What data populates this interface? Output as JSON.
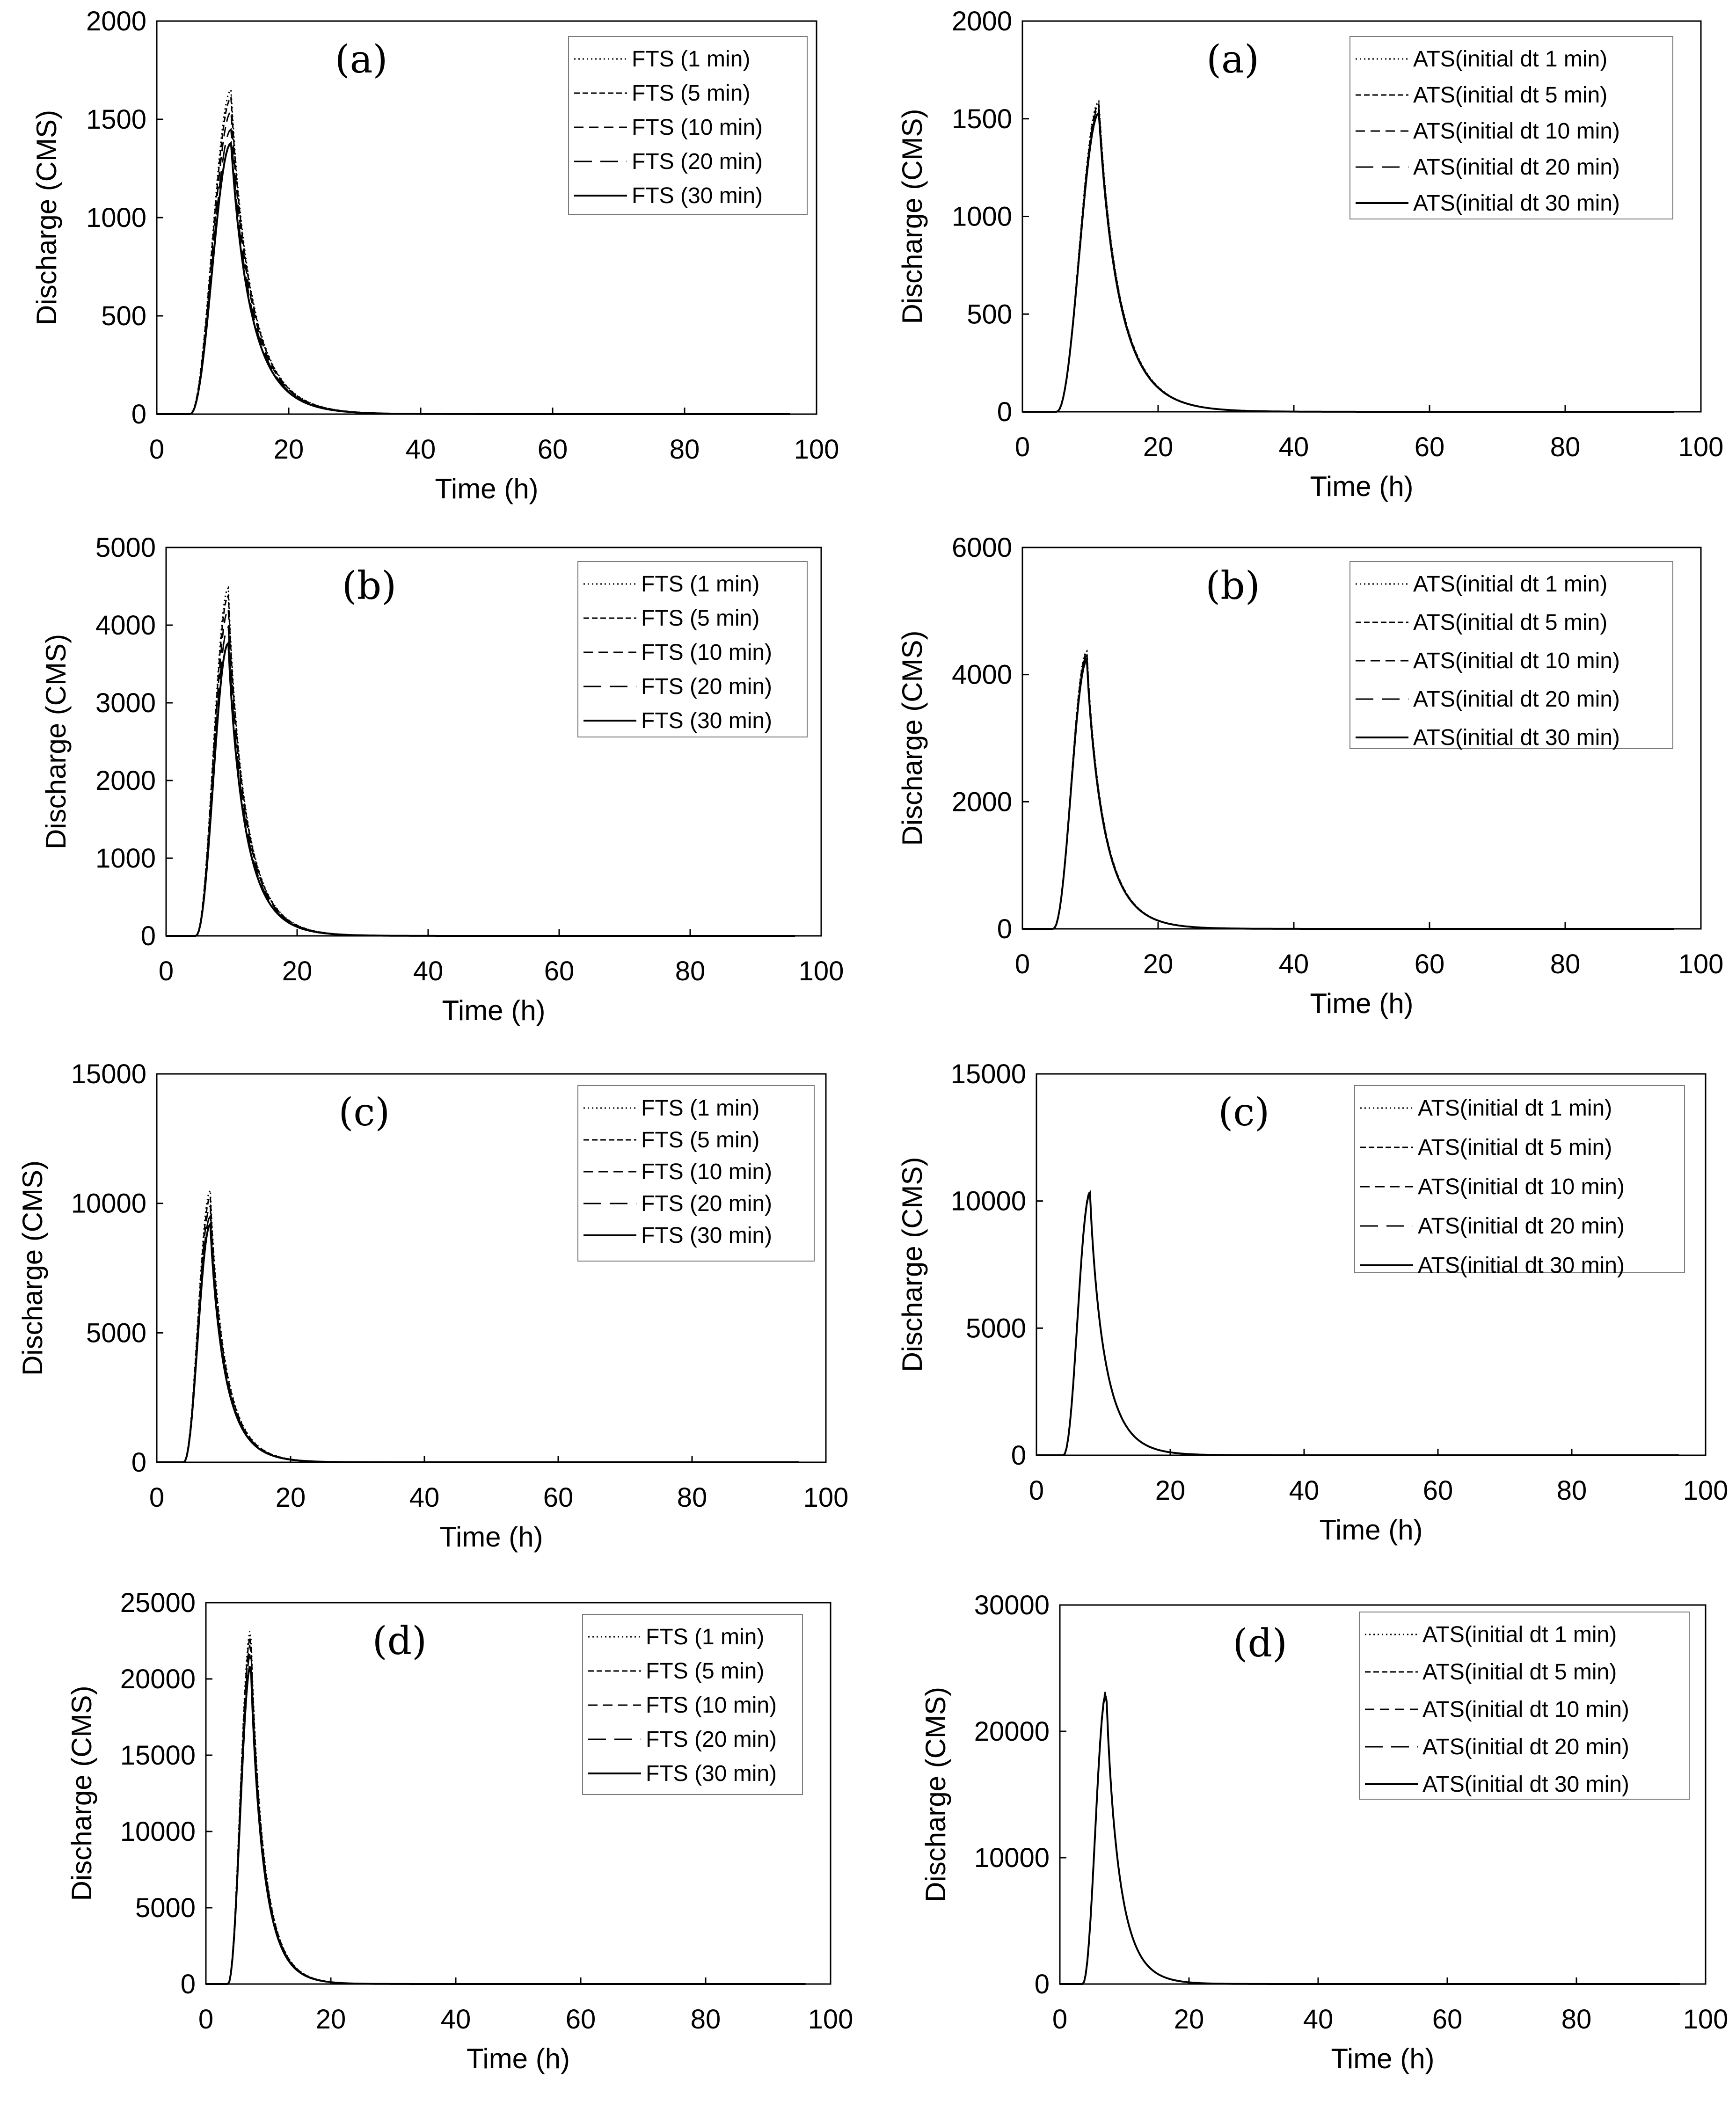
{
  "figure": {
    "description_labels": {
      "x_axis_label": "Time (h)",
      "y_axis_label": "Discharge (CMS)"
    }
  },
  "chart_data": [
    {
      "id": "fts-a",
      "type": "line",
      "panel_label": "(a)",
      "xlabel": "Time (h)",
      "ylabel": "Discharge (CMS)",
      "xlim": [
        0,
        100
      ],
      "ylim": [
        0,
        2000
      ],
      "xticks": [
        0,
        20,
        40,
        60,
        80,
        100
      ],
      "yticks": [
        0,
        500,
        1000,
        1500,
        2000
      ],
      "legend_position": "top-right",
      "grid": false,
      "hydrograph": {
        "t_start": 5,
        "t_peak": 11.3,
        "t_end": 96,
        "recession_k": 0.36,
        "recession_p": 0.9
      },
      "series": [
        {
          "name": "FTS (1 min)",
          "style": "dotted",
          "peak": 1650
        },
        {
          "name": "FTS (5 min)",
          "style": "short-dash",
          "peak": 1610
        },
        {
          "name": "FTS (10 min)",
          "style": "dash",
          "peak": 1540
        },
        {
          "name": "FTS (20 min)",
          "style": "long-dash",
          "peak": 1450
        },
        {
          "name": "FTS (30 min)",
          "style": "solid",
          "peak": 1380
        }
      ]
    },
    {
      "id": "ats-a",
      "type": "line",
      "panel_label": "(a)",
      "xlabel": "Time (h)",
      "ylabel": "Discharge (CMS)",
      "xlim": [
        0,
        100
      ],
      "ylim": [
        0,
        2000
      ],
      "xticks": [
        0,
        20,
        40,
        60,
        80,
        100
      ],
      "yticks": [
        0,
        500,
        1000,
        1500,
        2000
      ],
      "legend_position": "top-right",
      "grid": false,
      "hydrograph": {
        "t_start": 5,
        "t_peak": 11.3,
        "t_end": 96,
        "recession_k": 0.36,
        "recession_p": 0.9
      },
      "series": [
        {
          "name": "ATS(initial dt 1 min)",
          "style": "dotted",
          "peak": 1590
        },
        {
          "name": "ATS(initial dt 5 min)",
          "style": "short-dash",
          "peak": 1575
        },
        {
          "name": "ATS(initial dt 10 min)",
          "style": "dash",
          "peak": 1560
        },
        {
          "name": "ATS(initial dt 20 min)",
          "style": "long-dash",
          "peak": 1545
        },
        {
          "name": "ATS(initial dt 30 min)",
          "style": "solid",
          "peak": 1530
        }
      ]
    },
    {
      "id": "fts-b",
      "type": "line",
      "panel_label": "(b)",
      "xlabel": "Time (h)",
      "ylabel": "Discharge (CMS)",
      "xlim": [
        0,
        100
      ],
      "ylim": [
        0,
        5000
      ],
      "xticks": [
        0,
        20,
        40,
        60,
        80,
        100
      ],
      "yticks": [
        0,
        1000,
        2000,
        3000,
        4000,
        5000
      ],
      "legend_position": "top-right",
      "grid": false,
      "hydrograph": {
        "t_start": 4.5,
        "t_peak": 9.5,
        "t_end": 96,
        "recession_k": 0.42,
        "recession_p": 0.9
      },
      "series": [
        {
          "name": "FTS (1 min)",
          "style": "dotted",
          "peak": 4480
        },
        {
          "name": "FTS (5 min)",
          "style": "short-dash",
          "peak": 4380
        },
        {
          "name": "FTS (10 min)",
          "style": "dash",
          "peak": 4200
        },
        {
          "name": "FTS (20 min)",
          "style": "long-dash",
          "peak": 3980
        },
        {
          "name": "FTS (30 min)",
          "style": "solid",
          "peak": 3770
        }
      ]
    },
    {
      "id": "ats-b",
      "type": "line",
      "panel_label": "(b)",
      "xlabel": "Time (h)",
      "ylabel": "Discharge (CMS)",
      "xlim": [
        0,
        100
      ],
      "ylim": [
        0,
        6000
      ],
      "xticks": [
        0,
        20,
        40,
        60,
        80,
        100
      ],
      "yticks": [
        0,
        2000,
        4000,
        6000
      ],
      "legend_position": "top-right",
      "grid": false,
      "hydrograph": {
        "t_start": 4.5,
        "t_peak": 9.5,
        "t_end": 96,
        "recession_k": 0.42,
        "recession_p": 0.9
      },
      "series": [
        {
          "name": "ATS(initial dt 1 min)",
          "style": "dotted",
          "peak": 4370
        },
        {
          "name": "ATS(initial dt 5 min)",
          "style": "short-dash",
          "peak": 4340
        },
        {
          "name": "ATS(initial dt 10 min)",
          "style": "dash",
          "peak": 4300
        },
        {
          "name": "ATS(initial dt 20 min)",
          "style": "long-dash",
          "peak": 4260
        },
        {
          "name": "ATS(initial dt 30 min)",
          "style": "solid",
          "peak": 4220
        }
      ]
    },
    {
      "id": "fts-c",
      "type": "line",
      "panel_label": "(c)",
      "xlabel": "Time (h)",
      "ylabel": "Discharge (CMS)",
      "xlim": [
        0,
        100
      ],
      "ylim": [
        0,
        15000
      ],
      "xticks": [
        0,
        20,
        40,
        60,
        80,
        100
      ],
      "yticks": [
        0,
        5000,
        10000,
        15000
      ],
      "legend_position": "top-right",
      "grid": false,
      "hydrograph": {
        "t_start": 4,
        "t_peak": 8,
        "t_end": 96,
        "recession_k": 0.48,
        "recession_p": 0.9
      },
      "series": [
        {
          "name": "FTS (1 min)",
          "style": "dotted",
          "peak": 10500
        },
        {
          "name": "FTS (5 min)",
          "style": "short-dash",
          "peak": 10250
        },
        {
          "name": "FTS (10 min)",
          "style": "dash",
          "peak": 9900
        },
        {
          "name": "FTS (20 min)",
          "style": "long-dash",
          "peak": 9500
        },
        {
          "name": "FTS (30 min)",
          "style": "solid",
          "peak": 9200
        }
      ]
    },
    {
      "id": "ats-c",
      "type": "line",
      "panel_label": "(c)",
      "xlabel": "Time (h)",
      "ylabel": "Discharge (CMS)",
      "xlim": [
        0,
        100
      ],
      "ylim": [
        0,
        15000
      ],
      "xticks": [
        0,
        20,
        40,
        60,
        80,
        100
      ],
      "yticks": [
        0,
        5000,
        10000,
        15000
      ],
      "legend_position": "top-right",
      "grid": false,
      "hydrograph": {
        "t_start": 4,
        "t_peak": 8,
        "t_end": 96,
        "recession_k": 0.48,
        "recession_p": 0.9
      },
      "series": [
        {
          "name": "ATS(initial dt 1 min)",
          "style": "dotted",
          "peak": 10380
        },
        {
          "name": "ATS(initial dt 5 min)",
          "style": "short-dash",
          "peak": 10360
        },
        {
          "name": "ATS(initial dt 10 min)",
          "style": "dash",
          "peak": 10340
        },
        {
          "name": "ATS(initial dt 20 min)",
          "style": "long-dash",
          "peak": 10320
        },
        {
          "name": "ATS(initial dt 30 min)",
          "style": "solid",
          "peak": 10300
        }
      ]
    },
    {
      "id": "fts-d",
      "type": "line",
      "panel_label": "(d)",
      "xlabel": "Time (h)",
      "ylabel": "Discharge (CMS)",
      "xlim": [
        0,
        100
      ],
      "ylim": [
        0,
        25000
      ],
      "xticks": [
        0,
        20,
        40,
        60,
        80,
        100
      ],
      "yticks": [
        0,
        5000,
        10000,
        15000,
        20000,
        25000
      ],
      "legend_position": "top-right",
      "grid": false,
      "hydrograph": {
        "t_start": 3.5,
        "t_peak": 7.2,
        "t_end": 96,
        "recession_k": 0.52,
        "recession_p": 0.9
      },
      "series": [
        {
          "name": "FTS (1 min)",
          "style": "dotted",
          "peak": 23300
        },
        {
          "name": "FTS (5 min)",
          "style": "short-dash",
          "peak": 22900
        },
        {
          "name": "FTS (10 min)",
          "style": "dash",
          "peak": 22400
        },
        {
          "name": "FTS (20 min)",
          "style": "long-dash",
          "peak": 21800
        },
        {
          "name": "FTS (30 min)",
          "style": "solid",
          "peak": 21000
        }
      ]
    },
    {
      "id": "ats-d",
      "type": "line",
      "panel_label": "(d)",
      "xlabel": "Time (h)",
      "ylabel": "Discharge (CMS)",
      "xlim": [
        0,
        100
      ],
      "ylim": [
        0,
        30000
      ],
      "xticks": [
        0,
        20,
        40,
        60,
        80,
        100
      ],
      "yticks": [
        0,
        10000,
        20000,
        30000
      ],
      "legend_position": "top-right",
      "grid": false,
      "hydrograph": {
        "t_start": 3.5,
        "t_peak": 7.2,
        "t_end": 96,
        "recession_k": 0.52,
        "recession_p": 0.9
      },
      "series": [
        {
          "name": "ATS(initial dt 1 min)",
          "style": "dotted",
          "peak": 23300
        },
        {
          "name": "ATS(initial dt 5 min)",
          "style": "short-dash",
          "peak": 23250
        },
        {
          "name": "ATS(initial dt 10 min)",
          "style": "dash",
          "peak": 23200
        },
        {
          "name": "ATS(initial dt 20 min)",
          "style": "long-dash",
          "peak": 23150
        },
        {
          "name": "ATS(initial dt 30 min)",
          "style": "solid",
          "peak": 23100
        }
      ]
    }
  ]
}
